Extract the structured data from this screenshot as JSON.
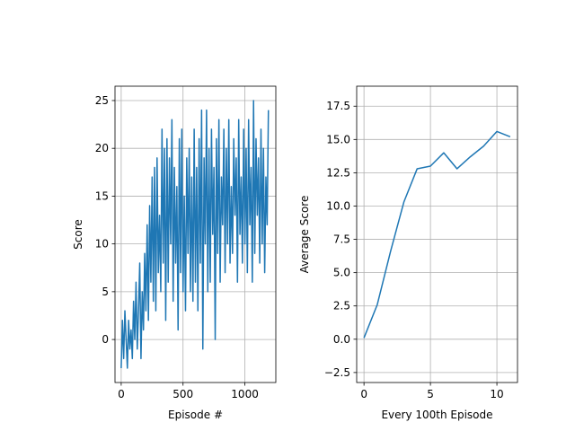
{
  "chart_data": [
    {
      "type": "line",
      "xlabel": "Episode #",
      "ylabel": "Score",
      "xlim": [
        -50,
        1250
      ],
      "ylim": [
        -4.5,
        26.5
      ],
      "xticks": [
        0,
        500,
        1000
      ],
      "yticks": [
        0,
        5,
        10,
        15,
        20,
        25
      ],
      "grid": true,
      "color": "#1f77b4",
      "series": [
        {
          "x": [
            0,
            10,
            20,
            30,
            40,
            50,
            60,
            70,
            80,
            90,
            100,
            110,
            120,
            130,
            140,
            150,
            160,
            170,
            180,
            190,
            200,
            210,
            220,
            230,
            240,
            250,
            260,
            270,
            280,
            290,
            300,
            310,
            320,
            330,
            340,
            350,
            360,
            370,
            380,
            390,
            400,
            410,
            420,
            430,
            440,
            450,
            460,
            470,
            480,
            490,
            500,
            510,
            520,
            530,
            540,
            550,
            560,
            570,
            580,
            590,
            600,
            610,
            620,
            630,
            640,
            650,
            660,
            670,
            680,
            690,
            700,
            710,
            720,
            730,
            740,
            750,
            760,
            770,
            780,
            790,
            800,
            810,
            820,
            830,
            840,
            850,
            860,
            870,
            880,
            890,
            900,
            910,
            920,
            930,
            940,
            950,
            960,
            970,
            980,
            990,
            1000,
            1010,
            1020,
            1030,
            1040,
            1050,
            1060,
            1070,
            1080,
            1090,
            1100,
            1110,
            1120,
            1130,
            1140,
            1150,
            1160,
            1170,
            1180,
            1190
          ],
          "y": [
            -3,
            2,
            -2,
            3,
            0,
            -3,
            2,
            -1,
            1,
            -2,
            4,
            0,
            6,
            -1,
            3,
            8,
            -2,
            5,
            1,
            9,
            3,
            12,
            2,
            14,
            6,
            17,
            4,
            18,
            3,
            19,
            7,
            13,
            5,
            22,
            8,
            20,
            2,
            21,
            6,
            19,
            10,
            23,
            4,
            18,
            8,
            16,
            1,
            21,
            7,
            22,
            5,
            15,
            3,
            19,
            9,
            20,
            5,
            17,
            4,
            22,
            6,
            18,
            3,
            21,
            8,
            24,
            -1,
            19,
            10,
            24,
            5,
            20,
            6,
            22,
            11,
            18,
            0,
            21,
            9,
            23,
            6,
            17,
            12,
            22,
            7,
            20,
            10,
            23,
            8,
            16,
            9,
            21,
            13,
            19,
            6,
            23,
            11,
            17,
            8,
            22,
            10,
            20,
            7,
            23,
            12,
            18,
            6,
            25,
            9,
            21,
            13,
            19,
            8,
            22,
            10,
            20,
            7,
            17,
            12,
            24
          ]
        }
      ]
    },
    {
      "type": "line",
      "xlabel": "Every 100th Episode",
      "ylabel": "Average Score",
      "xlim": [
        -0.55,
        11.55
      ],
      "ylim": [
        -3.25,
        19
      ],
      "xticks": [
        0,
        5,
        10
      ],
      "yticks": [
        -2.5,
        0.0,
        2.5,
        5.0,
        7.5,
        10.0,
        12.5,
        15.0,
        17.5
      ],
      "grid": true,
      "color": "#1f77b4",
      "series": [
        {
          "x": [
            0,
            1,
            2,
            3,
            4,
            5,
            6,
            7,
            8,
            9,
            10,
            11
          ],
          "y": [
            0.1,
            2.6,
            6.6,
            10.3,
            12.8,
            13.0,
            14.0,
            12.8,
            13.7,
            14.5,
            15.6,
            15.2
          ]
        }
      ]
    }
  ]
}
